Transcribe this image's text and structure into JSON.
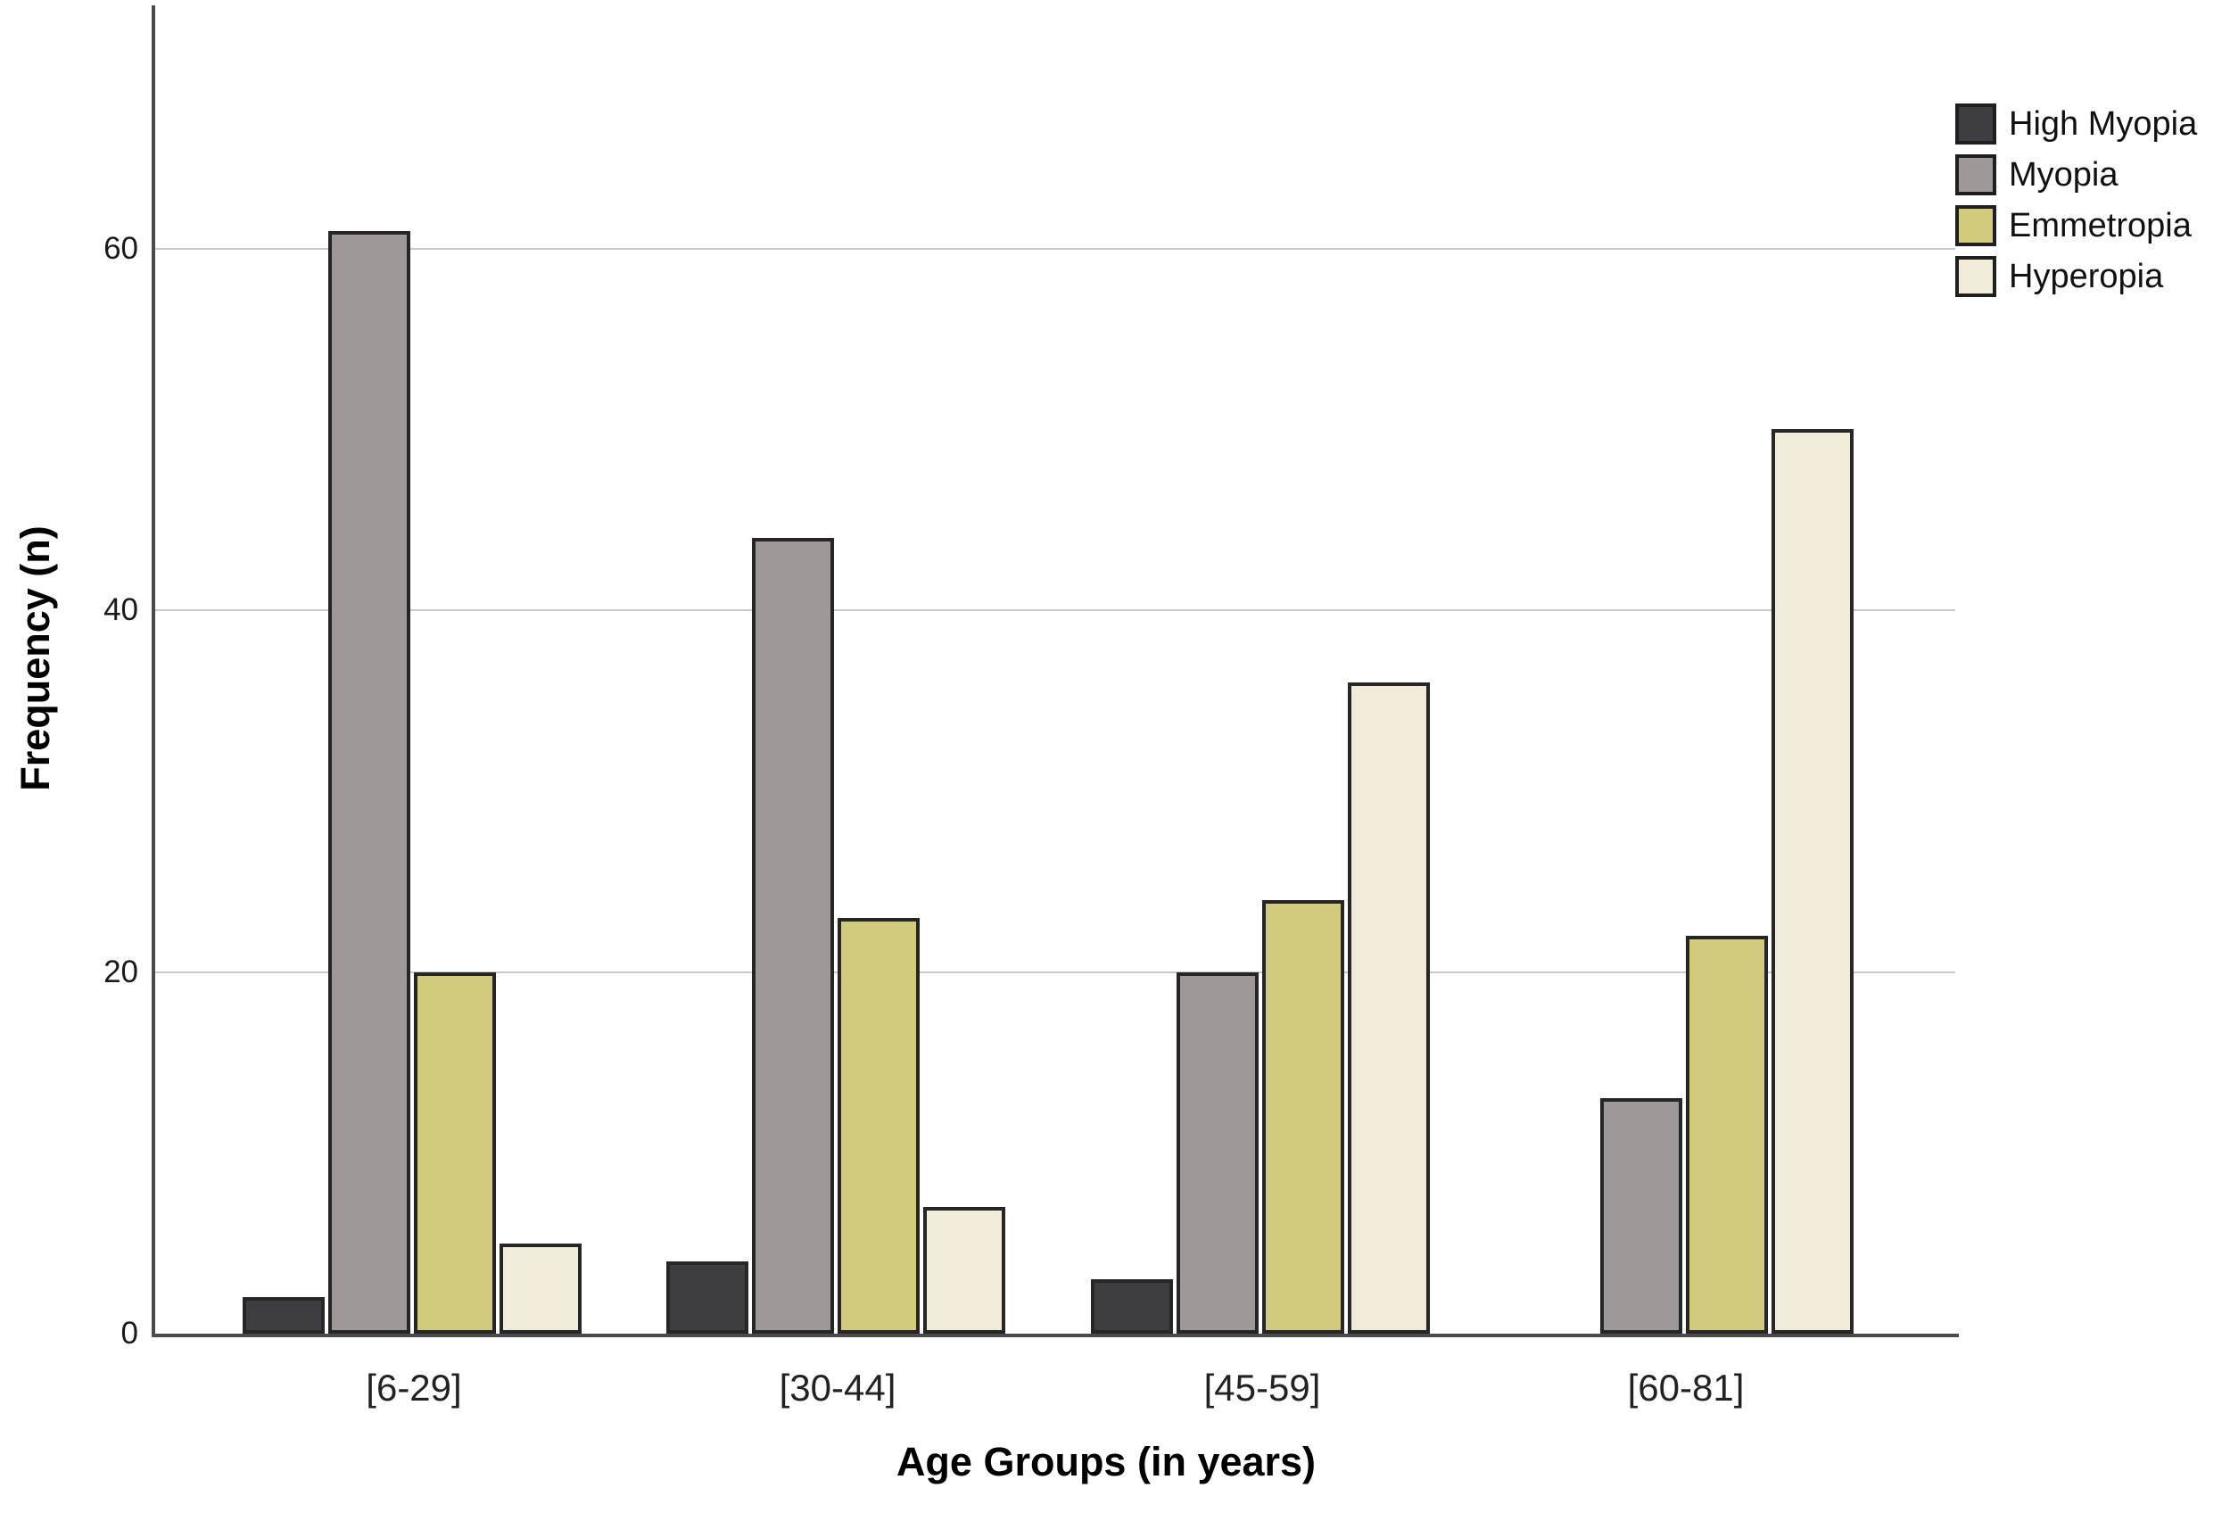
{
  "chart_data": {
    "type": "bar",
    "title": "",
    "xlabel": "Age Groups (in years)",
    "ylabel": "Frequency (n)",
    "categories": [
      "[6-29]",
      "[30-44]",
      "[45-59]",
      "[60-81]"
    ],
    "series": [
      {
        "name": "High Myopia",
        "color": "#3D3D42",
        "values": [
          2,
          4,
          3,
          0
        ]
      },
      {
        "name": "Myopia",
        "color": "#9E9899",
        "values": [
          61,
          44,
          20,
          13
        ]
      },
      {
        "name": "Emmetropia",
        "color": "#D2CA7C",
        "values": [
          20,
          23,
          24,
          22
        ]
      },
      {
        "name": "Hyperopia",
        "color": "#F1ECD9",
        "values": [
          5,
          7,
          36,
          50
        ]
      }
    ],
    "yticks": [
      0,
      20,
      40,
      60
    ],
    "ylim": [
      0,
      73.5
    ],
    "grid": true,
    "legend_position": "top-right",
    "bar_border_color": "#262626",
    "grid_color": "#C8C8C8",
    "axis_color": "#4A4A4A",
    "text_color": "#1A1A1A"
  }
}
